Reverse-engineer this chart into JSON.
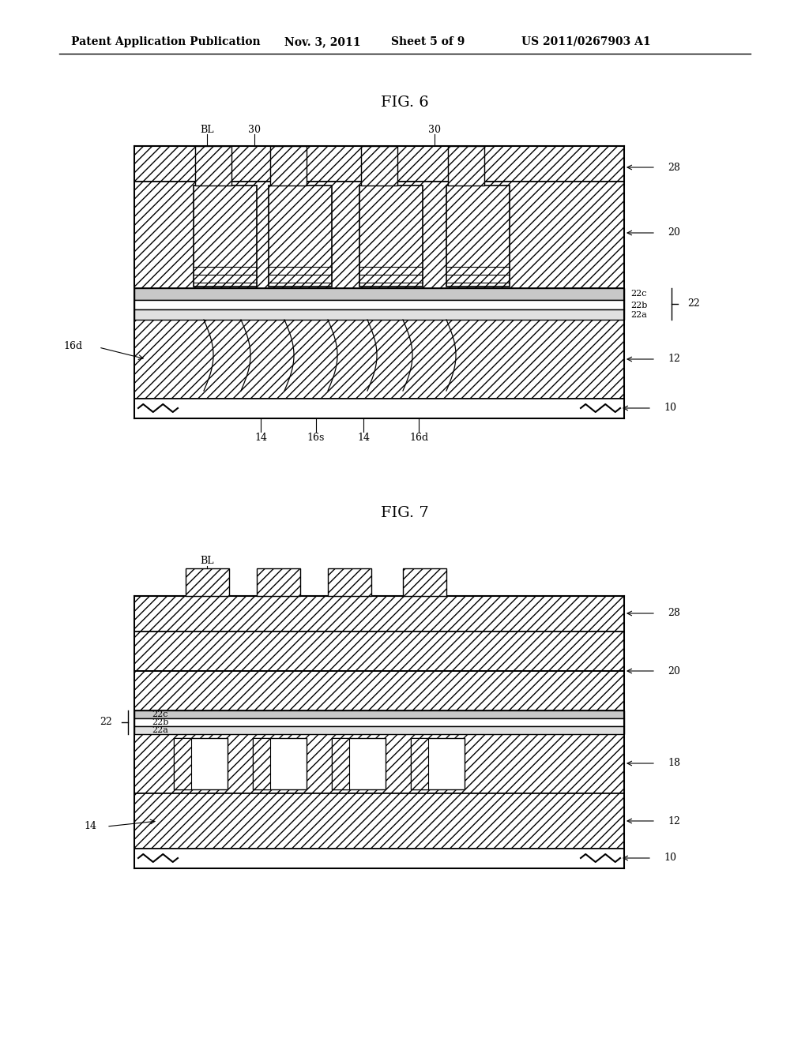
{
  "bg_color": "#ffffff",
  "header_text": "Patent Application Publication",
  "header_date": "Nov. 3, 2011",
  "header_sheet": "Sheet 5 of 9",
  "header_patent": "US 2011/0267903 A1",
  "fig6_title": "FIG. 6",
  "fig7_title": "FIG. 7",
  "line_color": "#000000",
  "hatch_dense": "///",
  "hatch_cross": "xxx"
}
